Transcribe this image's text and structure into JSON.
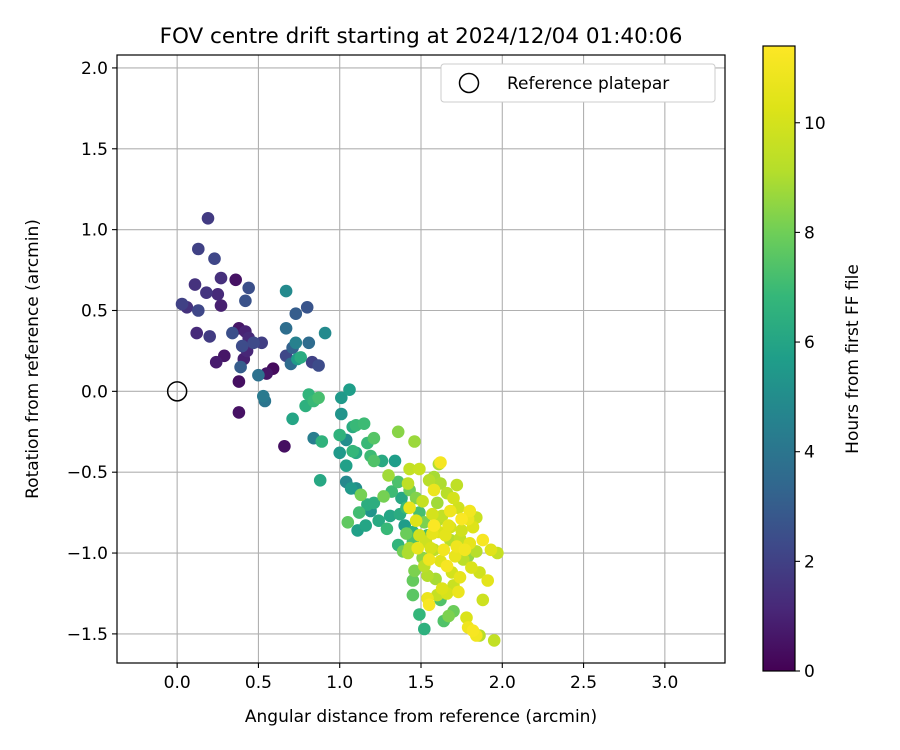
{
  "chart_data": {
    "type": "scatter",
    "title": "FOV centre drift starting at 2024/12/04 01:40:06",
    "xlabel": "Angular distance from reference (arcmin)",
    "ylabel": "Rotation from reference (arcmin)",
    "xlim": [
      -0.37,
      3.37
    ],
    "ylim": [
      -1.68,
      2.08
    ],
    "xticks": [
      0.0,
      0.5,
      1.0,
      1.5,
      2.0,
      2.5,
      3.0
    ],
    "xtick_labels": [
      "0.0",
      "0.5",
      "1.0",
      "1.5",
      "2.0",
      "2.5",
      "3.0"
    ],
    "yticks": [
      -1.5,
      -1.0,
      -0.5,
      0.0,
      0.5,
      1.0,
      1.5,
      2.0
    ],
    "ytick_labels": [
      "−1.5",
      "−1.0",
      "−0.5",
      "0.0",
      "0.5",
      "1.0",
      "1.5",
      "2.0"
    ],
    "grid": true,
    "legend": {
      "placement": "upper-right",
      "entries": [
        "Reference platepar"
      ]
    },
    "reference_point": {
      "x": 0.0,
      "y": 0.0
    },
    "colorbar": {
      "label": "Hours from first FF file",
      "colormap": "viridis",
      "range": [
        0,
        11.4
      ],
      "ticks": [
        0,
        2,
        4,
        6,
        8,
        10
      ],
      "tick_labels": [
        "0",
        "2",
        "4",
        "6",
        "8",
        "10"
      ]
    },
    "points": [
      [
        0.19,
        1.07,
        1.8
      ],
      [
        0.23,
        0.82,
        2.2
      ],
      [
        0.13,
        0.88,
        2.0
      ],
      [
        0.11,
        0.66,
        1.5
      ],
      [
        0.18,
        0.61,
        1.6
      ],
      [
        0.27,
        0.7,
        1.4
      ],
      [
        0.36,
        0.69,
        0.5
      ],
      [
        0.44,
        0.64,
        2.5
      ],
      [
        0.42,
        0.56,
        2.6
      ],
      [
        0.25,
        0.6,
        1.2
      ],
      [
        0.27,
        0.53,
        0.9
      ],
      [
        0.03,
        0.54,
        2.0
      ],
      [
        0.06,
        0.52,
        1.5
      ],
      [
        0.13,
        0.5,
        2.2
      ],
      [
        0.12,
        0.36,
        1.2
      ],
      [
        0.2,
        0.34,
        1.8
      ],
      [
        0.34,
        0.36,
        2.5
      ],
      [
        0.38,
        0.39,
        0.6
      ],
      [
        0.42,
        0.37,
        1.0
      ],
      [
        0.44,
        0.33,
        1.2
      ],
      [
        0.47,
        0.3,
        2.3
      ],
      [
        0.52,
        0.3,
        1.9
      ],
      [
        0.4,
        0.28,
        2.4
      ],
      [
        0.43,
        0.25,
        1.1
      ],
      [
        0.41,
        0.2,
        0.9
      ],
      [
        0.24,
        0.18,
        0.8
      ],
      [
        0.29,
        0.22,
        0.6
      ],
      [
        0.39,
        0.15,
        3.0
      ],
      [
        0.59,
        0.14,
        0.3
      ],
      [
        0.55,
        0.11,
        0.6
      ],
      [
        0.5,
        0.1,
        3.8
      ],
      [
        0.38,
        0.06,
        0.4
      ],
      [
        0.53,
        -0.03,
        4.2
      ],
      [
        0.54,
        -0.06,
        4.0
      ],
      [
        0.38,
        -0.13,
        0.5
      ],
      [
        0.67,
        0.62,
        4.9
      ],
      [
        0.73,
        0.48,
        3.0
      ],
      [
        0.8,
        0.52,
        2.7
      ],
      [
        0.67,
        0.39,
        3.7
      ],
      [
        0.81,
        0.3,
        3.6
      ],
      [
        0.91,
        0.36,
        4.9
      ],
      [
        0.73,
        0.3,
        4.5
      ],
      [
        0.71,
        0.27,
        3.2
      ],
      [
        0.67,
        0.22,
        2.2
      ],
      [
        0.7,
        0.17,
        3.6
      ],
      [
        0.76,
        0.21,
        6.3
      ],
      [
        0.83,
        0.18,
        2.0
      ],
      [
        0.87,
        0.16,
        2.4
      ],
      [
        0.74,
        0.2,
        5.6
      ],
      [
        0.81,
        -0.02,
        6.7
      ],
      [
        0.84,
        -0.06,
        6.9
      ],
      [
        0.87,
        -0.04,
        7.2
      ],
      [
        0.79,
        -0.09,
        6.5
      ],
      [
        0.71,
        -0.17,
        6.0
      ],
      [
        0.66,
        -0.34,
        0.4
      ],
      [
        0.84,
        -0.29,
        4.4
      ],
      [
        0.89,
        -0.31,
        6.6
      ],
      [
        1.06,
        0.01,
        5.7
      ],
      [
        1.01,
        -0.04,
        5.5
      ],
      [
        1.01,
        -0.14,
        5.3
      ],
      [
        1.08,
        -0.22,
        6.3
      ],
      [
        1.0,
        -0.27,
        6.6
      ],
      [
        1.1,
        -0.21,
        6.9
      ],
      [
        1.0,
        -0.38,
        5.5
      ],
      [
        1.04,
        -0.3,
        5.0
      ],
      [
        1.08,
        -0.37,
        6.8
      ],
      [
        1.1,
        -0.38,
        6.2
      ],
      [
        1.04,
        -0.46,
        5.8
      ],
      [
        1.15,
        -0.2,
        7.0
      ],
      [
        1.21,
        -0.29,
        7.5
      ],
      [
        1.17,
        -0.32,
        6.9
      ],
      [
        1.19,
        -0.4,
        7.0
      ],
      [
        1.21,
        -0.43,
        7.4
      ],
      [
        1.26,
        -0.43,
        6.2
      ],
      [
        1.36,
        -0.25,
        8.4
      ],
      [
        1.46,
        -0.31,
        8.7
      ],
      [
        1.34,
        -0.43,
        5.7
      ],
      [
        1.43,
        -0.48,
        9.5
      ],
      [
        1.49,
        -0.48,
        9.7
      ],
      [
        1.55,
        -0.55,
        9.2
      ],
      [
        0.88,
        -0.55,
        6.1
      ],
      [
        1.04,
        -0.56,
        4.8
      ],
      [
        1.07,
        -0.6,
        5.5
      ],
      [
        1.1,
        -0.6,
        5.0
      ],
      [
        1.13,
        -0.64,
        8.1
      ],
      [
        1.17,
        -0.7,
        6.4
      ],
      [
        1.12,
        -0.75,
        7.1
      ],
      [
        1.05,
        -0.81,
        7.7
      ],
      [
        1.11,
        -0.86,
        5.8
      ],
      [
        1.16,
        -0.83,
        6.0
      ],
      [
        1.19,
        -0.74,
        5.3
      ],
      [
        1.21,
        -0.69,
        6.4
      ],
      [
        1.27,
        -0.65,
        8.1
      ],
      [
        1.24,
        -0.8,
        6.2
      ],
      [
        1.29,
        -0.85,
        6.9
      ],
      [
        1.31,
        -0.77,
        6.0
      ],
      [
        1.32,
        -0.62,
        7.0
      ],
      [
        1.3,
        -0.52,
        8.8
      ],
      [
        1.36,
        -0.56,
        7.3
      ],
      [
        1.37,
        -0.76,
        6.3
      ],
      [
        1.4,
        -0.83,
        5.6
      ],
      [
        1.41,
        -0.72,
        6.9
      ],
      [
        1.38,
        -0.66,
        6.1
      ],
      [
        1.43,
        -0.61,
        8.0
      ],
      [
        1.45,
        -0.87,
        6.6
      ],
      [
        1.45,
        -0.93,
        7.3
      ],
      [
        1.43,
        -0.97,
        9.0
      ],
      [
        1.43,
        -0.72,
        10.7
      ],
      [
        1.47,
        -0.66,
        8.3
      ],
      [
        1.42,
        -0.57,
        9.4
      ],
      [
        1.49,
        -0.75,
        7.2
      ],
      [
        1.52,
        -0.81,
        8.2
      ],
      [
        1.54,
        -0.89,
        7.0
      ],
      [
        1.48,
        -0.97,
        10.7
      ],
      [
        1.51,
        -1.03,
        8.5
      ],
      [
        1.52,
        -1.08,
        9.3
      ],
      [
        1.46,
        -1.11,
        8.2
      ],
      [
        1.45,
        -1.17,
        7.8
      ],
      [
        1.45,
        -1.26,
        7.6
      ],
      [
        1.54,
        -1.14,
        9.1
      ],
      [
        1.54,
        -1.28,
        10.8
      ],
      [
        1.6,
        -1.26,
        9.6
      ],
      [
        1.62,
        -1.29,
        7.4
      ],
      [
        1.49,
        -1.38,
        6.8
      ],
      [
        1.52,
        -1.47,
        6.5
      ],
      [
        1.64,
        -1.42,
        7.4
      ],
      [
        1.67,
        -1.39,
        8.2
      ],
      [
        1.7,
        -1.36,
        7.9
      ],
      [
        1.78,
        -1.4,
        10.2
      ],
      [
        1.79,
        -1.46,
        10.9
      ],
      [
        1.82,
        -1.48,
        11.2
      ],
      [
        1.84,
        -1.51,
        11.0
      ],
      [
        1.86,
        -1.51,
        9.2
      ],
      [
        1.95,
        -1.54,
        9.5
      ],
      [
        1.88,
        -1.29,
        9.8
      ],
      [
        1.91,
        -1.17,
        10.5
      ],
      [
        1.86,
        -1.12,
        9.9
      ],
      [
        1.81,
        -1.09,
        10.2
      ],
      [
        1.79,
        -1.02,
        8.6
      ],
      [
        1.84,
        -0.99,
        9.2
      ],
      [
        1.88,
        -0.92,
        11.2
      ],
      [
        1.93,
        -0.98,
        10.4
      ],
      [
        1.97,
        -1.0,
        9.6
      ],
      [
        1.8,
        -0.94,
        10.6
      ],
      [
        1.75,
        -0.86,
        9.9
      ],
      [
        1.82,
        -0.84,
        10.3
      ],
      [
        1.84,
        -0.78,
        9.7
      ],
      [
        1.8,
        -0.74,
        11.0
      ],
      [
        1.79,
        -0.79,
        10.8
      ],
      [
        1.73,
        -0.72,
        9.9
      ],
      [
        1.68,
        -0.74,
        10.9
      ],
      [
        1.7,
        -0.66,
        10.0
      ],
      [
        1.66,
        -0.63,
        9.2
      ],
      [
        1.72,
        -0.58,
        9.4
      ],
      [
        1.62,
        -0.57,
        9.0
      ],
      [
        1.58,
        -0.53,
        8.9
      ],
      [
        1.62,
        -0.44,
        11.1
      ],
      [
        1.61,
        -0.45,
        9.0
      ],
      [
        1.58,
        -0.61,
        10.8
      ],
      [
        1.6,
        -0.69,
        8.8
      ],
      [
        1.63,
        -0.77,
        9.5
      ],
      [
        1.58,
        -0.83,
        11.3
      ],
      [
        1.61,
        -0.87,
        10.2
      ],
      [
        1.65,
        -0.89,
        10.5
      ],
      [
        1.68,
        -0.92,
        9.1
      ],
      [
        1.72,
        -0.96,
        10.9
      ],
      [
        1.64,
        -0.98,
        11.0
      ],
      [
        1.58,
        -0.98,
        9.4
      ],
      [
        1.62,
        -1.05,
        10.4
      ],
      [
        1.66,
        -1.08,
        11.2
      ],
      [
        1.69,
        -1.12,
        10.0
      ],
      [
        1.74,
        -1.15,
        10.6
      ],
      [
        1.76,
        -1.04,
        9.3
      ],
      [
        1.71,
        -1.02,
        10.7
      ],
      [
        1.56,
        -0.97,
        10.1
      ],
      [
        1.53,
        -0.93,
        9.8
      ],
      [
        1.55,
        -1.04,
        10.9
      ],
      [
        1.59,
        -1.16,
        8.9
      ],
      [
        1.63,
        -1.22,
        10.3
      ],
      [
        1.55,
        -1.32,
        11.2
      ],
      [
        1.57,
        -0.76,
        10.0
      ],
      [
        1.51,
        -0.68,
        9.6
      ],
      [
        1.47,
        -0.8,
        10.3
      ],
      [
        1.49,
        -0.89,
        9.9
      ],
      [
        1.41,
        -0.88,
        7.9
      ],
      [
        1.36,
        -0.95,
        6.7
      ],
      [
        1.39,
        -0.99,
        8.0
      ],
      [
        1.42,
        -1.0,
        9.0
      ],
      [
        1.6,
        -0.8,
        9.3
      ],
      [
        1.67,
        -0.83,
        10.5
      ],
      [
        1.74,
        -0.91,
        9.5
      ],
      [
        1.77,
        -0.98,
        11.0
      ],
      [
        1.7,
        -1.2,
        9.7
      ],
      [
        1.66,
        -1.25,
        10.1
      ],
      [
        1.73,
        -1.24,
        10.8
      ],
      [
        1.68,
        -0.84,
        10.0
      ],
      [
        1.75,
        -0.79,
        11.3
      ],
      [
        1.57,
        -0.88,
        10.6
      ]
    ]
  }
}
